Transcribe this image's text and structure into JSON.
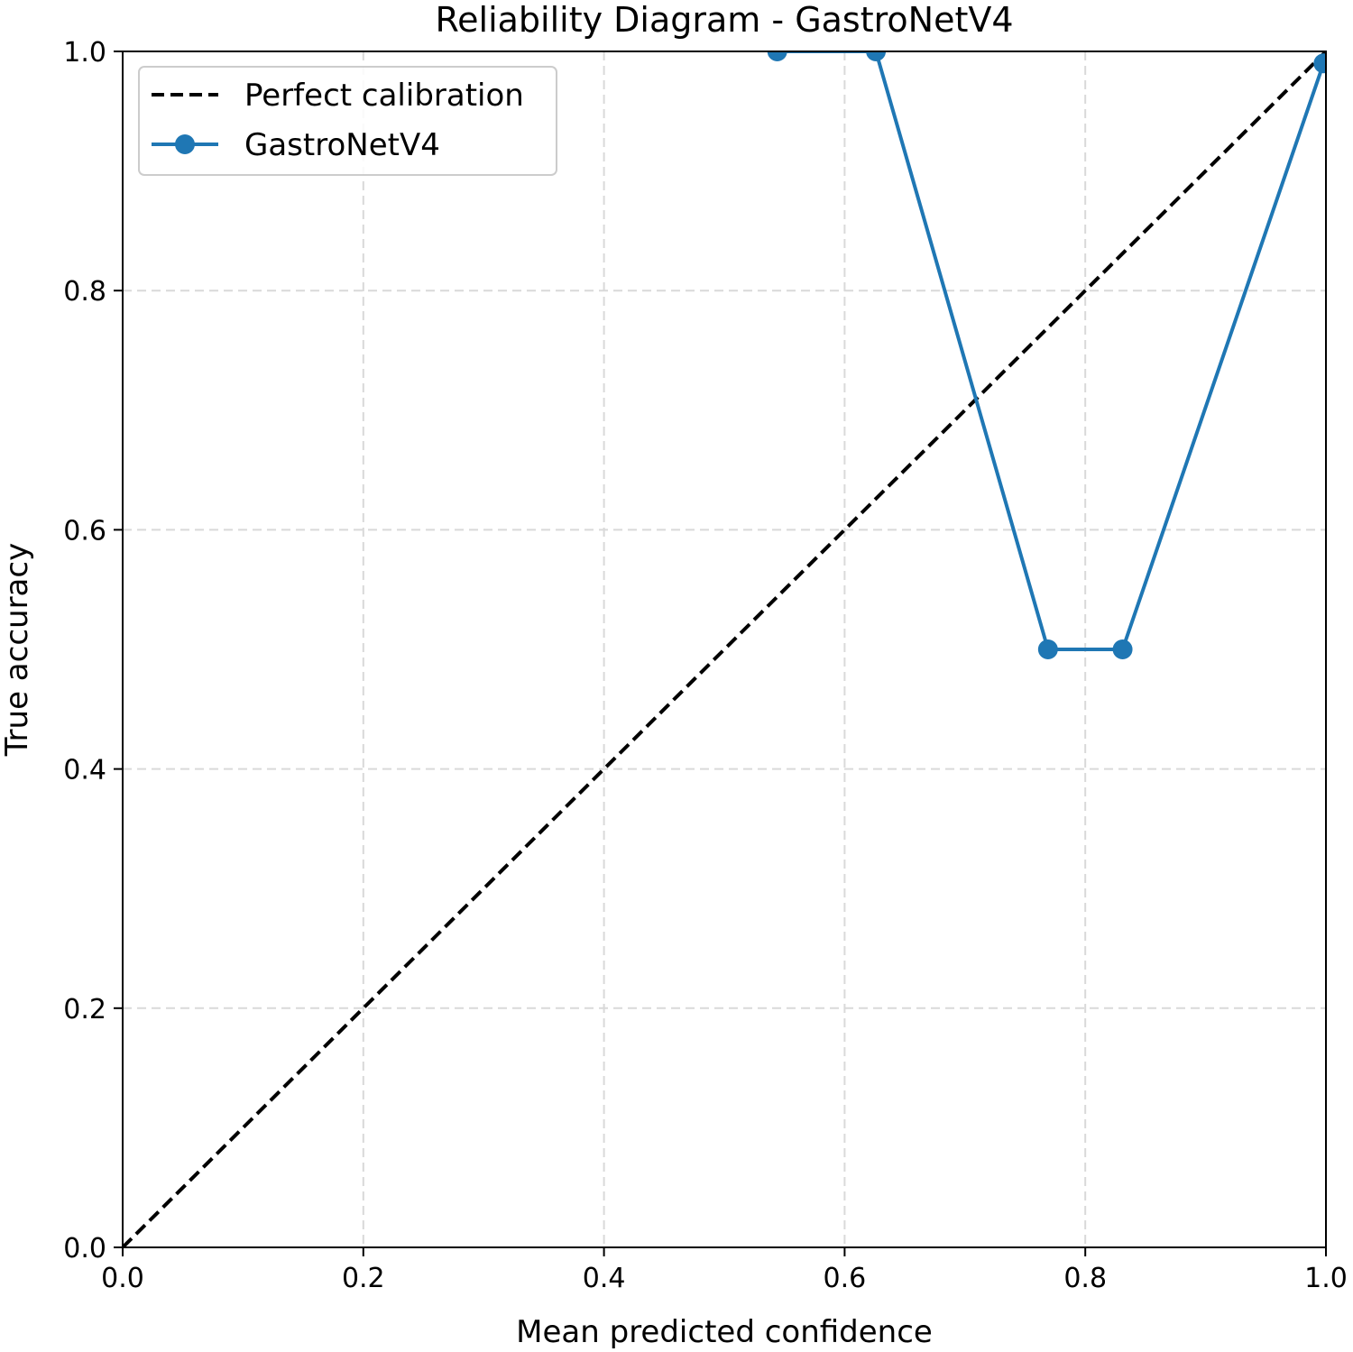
{
  "chart_data": {
    "type": "line",
    "title": "Reliability Diagram - GastroNetV4",
    "xlabel": "Mean predicted confidence",
    "ylabel": "True accuracy",
    "xlim": [
      0.0,
      1.0
    ],
    "ylim": [
      0.0,
      1.0
    ],
    "x_ticks": [
      "0.0",
      "0.2",
      "0.4",
      "0.6",
      "0.8",
      "1.0"
    ],
    "y_ticks": [
      "0.0",
      "0.2",
      "0.4",
      "0.6",
      "0.8",
      "1.0"
    ],
    "grid": true,
    "legend_position": "top-left",
    "series": [
      {
        "name": "Perfect calibration",
        "style": "dashed",
        "color": "#000000",
        "x": [
          0.0,
          1.0
        ],
        "y": [
          0.0,
          1.0
        ]
      },
      {
        "name": "GastroNetV4",
        "style": "solid-markers",
        "color": "#1f77b4",
        "x": [
          0.544,
          0.626,
          0.769,
          0.831,
          0.998
        ],
        "y": [
          1.0,
          1.0,
          0.5,
          0.5,
          0.99
        ]
      }
    ]
  }
}
